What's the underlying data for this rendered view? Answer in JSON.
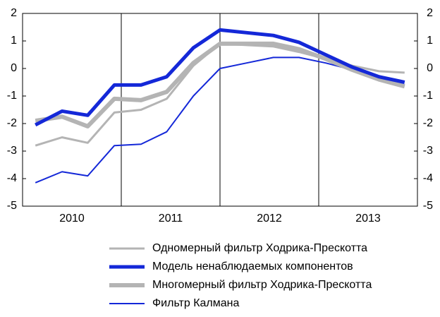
{
  "chart_data": {
    "type": "line",
    "x": [
      2010.13,
      2010.4,
      2010.66,
      2010.93,
      2011.2,
      2011.46,
      2011.73,
      2012.0,
      2012.27,
      2012.54,
      2012.8,
      2013.07,
      2013.34,
      2013.61,
      2013.87
    ],
    "xlim": [
      2010,
      2014
    ],
    "xticks": [
      {
        "value": 2010.5,
        "label": "2010"
      },
      {
        "value": 2011.5,
        "label": "2011"
      },
      {
        "value": 2012.5,
        "label": "2012"
      },
      {
        "value": 2013.5,
        "label": "2013"
      }
    ],
    "xgrid": [
      2011,
      2012,
      2013
    ],
    "ylim": [
      -5,
      2
    ],
    "yticks": [
      -5,
      -4,
      -3,
      -2,
      -1,
      0,
      1,
      2
    ],
    "right_axis": true,
    "legend": "bottom",
    "series": [
      {
        "name": "Одномерный фильтр Ходрика-Прескотта",
        "color": "#b4b4b4",
        "width": 3,
        "values": [
          -2.8,
          -2.5,
          -2.7,
          -1.6,
          -1.5,
          -1.1,
          0.1,
          0.9,
          0.85,
          0.8,
          0.6,
          0.35,
          0.1,
          -0.1,
          -0.15
        ]
      },
      {
        "name": "Модель ненаблюдаемых компонентов",
        "color": "#1428d8",
        "width": 5,
        "values": [
          -2.05,
          -1.55,
          -1.7,
          -0.6,
          -0.6,
          -0.3,
          0.75,
          1.4,
          1.3,
          1.2,
          0.95,
          0.5,
          0.05,
          -0.3,
          -0.5
        ]
      },
      {
        "name": "Многомерный фильтр Ходрика-Прескотта",
        "color": "#b4b4b4",
        "width": 6,
        "values": [
          -1.9,
          -1.75,
          -2.1,
          -1.1,
          -1.15,
          -0.85,
          0.2,
          0.9,
          0.9,
          0.9,
          0.7,
          0.35,
          -0.05,
          -0.4,
          -0.65
        ]
      },
      {
        "name": "Фильтр Калмана",
        "color": "#1428d8",
        "width": 2,
        "values": [
          -4.15,
          -3.75,
          -3.9,
          -2.8,
          -2.75,
          -2.3,
          -1.0,
          0.0,
          0.2,
          0.4,
          0.4,
          0.2,
          -0.05,
          -0.35,
          -0.6
        ]
      }
    ]
  }
}
